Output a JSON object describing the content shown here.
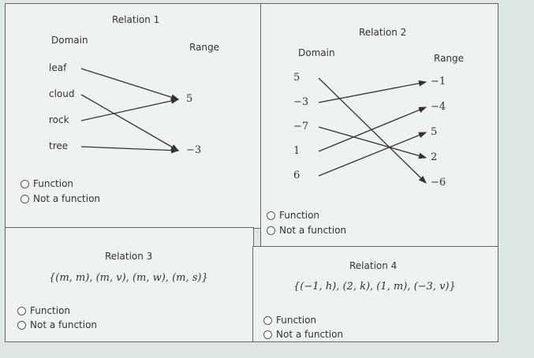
{
  "relation1": {
    "title": "Relation 1",
    "domain_label": "Domain",
    "range_label": "Range",
    "domain": [
      "leaf",
      "cloud",
      "rock",
      "tree"
    ],
    "range": [
      "5",
      "−3"
    ],
    "arrows": [
      [
        "leaf",
        "5"
      ],
      [
        "cloud",
        "−3"
      ],
      [
        "rock",
        "5"
      ],
      [
        "tree",
        "−3"
      ]
    ],
    "options": [
      "Function",
      "Not a function"
    ]
  },
  "relation2": {
    "title": "Relation 2",
    "domain_label": "Domain",
    "range_label": "Range",
    "domain": [
      "5",
      "−3",
      "−7",
      "1",
      "6"
    ],
    "range": [
      "−1",
      "−4",
      "5",
      "2",
      "−6"
    ],
    "arrows": [
      [
        "5",
        "−6"
      ],
      [
        "−3",
        "−1"
      ],
      [
        "−7",
        "2"
      ],
      [
        "1",
        "−4"
      ],
      [
        "6",
        "5"
      ]
    ],
    "options": [
      "Function",
      "Not a function"
    ]
  },
  "relation3": {
    "title": "Relation 3",
    "set": "{(m, m), (m, v), (m, w), (m, s)}",
    "options": [
      "Function",
      "Not a function"
    ]
  },
  "relation4": {
    "title": "Relation 4",
    "set": "{(−1, h), (2, k), (1, m), (−3, v)}",
    "options": [
      "Function",
      "Not a function"
    ]
  }
}
